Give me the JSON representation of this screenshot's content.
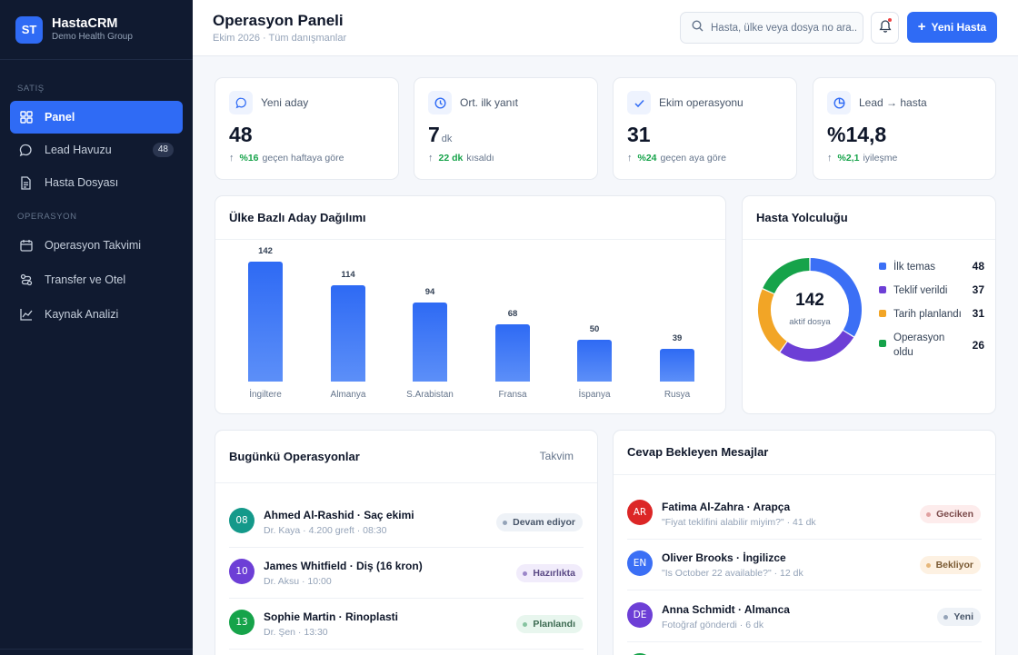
{
  "brand": {
    "logo": "ST",
    "name": "HastaCRM",
    "sub": "Demo Health Group",
    "accent": "#2f6bf5"
  },
  "sidebar": {
    "sections": [
      "SATIŞ",
      "OPERASYON"
    ],
    "items": [
      {
        "label": "Panel",
        "icon": "grid-icon",
        "active": true
      },
      {
        "label": "Lead Havuzu",
        "icon": "chat-icon",
        "badge": "48"
      },
      {
        "label": "Hasta Dosyası",
        "icon": "document-icon"
      },
      {
        "label": "Operasyon Takvimi",
        "icon": "calendar-icon"
      },
      {
        "label": "Transfer ve Otel",
        "icon": "route-icon"
      },
      {
        "label": "Kaynak Analizi",
        "icon": "line-chart-icon"
      }
    ]
  },
  "header": {
    "title": "Operasyon Paneli",
    "subtitle": "Ekim 2026 · Tüm danışmanlar",
    "search_placeholder": "Hasta, ülke veya dosya no ara...",
    "new_button": "Yeni Hasta"
  },
  "kpis": [
    {
      "label": "Yeni aday",
      "icon": "chat-icon",
      "value": "48",
      "unit": "",
      "delta": "%16",
      "note": "geçen haftaya göre"
    },
    {
      "label": "Ort. ilk yanıt",
      "icon": "clock-icon",
      "value": "7",
      "unit": "dk",
      "delta": "22 dk",
      "note": "kısaldı"
    },
    {
      "label": "Ekim operasyonu",
      "icon": "check-icon",
      "value": "31",
      "unit": "",
      "delta": "%24",
      "note": "geçen aya göre"
    },
    {
      "label": "Lead → hasta",
      "icon": "pie-icon",
      "value": "%14,8",
      "unit": "",
      "delta": "%2,1",
      "note": "iyileşme"
    }
  ],
  "chart_data": {
    "type": "bar",
    "title": "Ülke Bazlı Aday Dağılımı",
    "categories": [
      "İngiltere",
      "Almanya",
      "S.Arabistan",
      "Fransa",
      "İspanya",
      "Rusya"
    ],
    "values": [
      142,
      114,
      94,
      68,
      50,
      39
    ],
    "color": "#2f6bf5"
  },
  "journey": {
    "title": "Hasta Yolculuğu",
    "total": "142",
    "total_label": "aktif dosya",
    "segments": [
      {
        "label": "İlk temas",
        "value": 48,
        "color": "#3b6ff5"
      },
      {
        "label": "Teklif verildi",
        "value": 37,
        "color": "#6d3fd6"
      },
      {
        "label": "Tarih planlandı",
        "value": 31,
        "color": "#f2a526"
      },
      {
        "label": "Operasyon oldu",
        "value": 26,
        "color": "#16a34a"
      }
    ]
  },
  "operations": {
    "title": "Bugünkü Operasyonlar",
    "link": "Takvim",
    "rows": [
      {
        "day": "08",
        "color": "#14998a",
        "title": "Ahmed Al-Rashid · Saç ekimi",
        "sub": "Dr. Kaya · 4.200 greft · 08:30",
        "status": "Devam ediyor",
        "status_bg": "#eef2f7",
        "status_fg": "#475569",
        "status_dot": "#94a3b8"
      },
      {
        "day": "10",
        "color": "#6d3fd6",
        "title": "James Whitfield · Diş (16 kron)",
        "sub": "Dr. Aksu · 10:00",
        "status": "Hazırlıkta",
        "status_bg": "#f1ecfb",
        "status_fg": "#5b4a86",
        "status_dot": "#9b86c9"
      },
      {
        "day": "13",
        "color": "#16a34a",
        "title": "Sophie Martin · Rinoplasti",
        "sub": "Dr. Şen · 13:30",
        "status": "Planlandı",
        "status_bg": "#e8f6ee",
        "status_fg": "#3d6b52",
        "status_dot": "#86c3a0"
      }
    ]
  },
  "messages": {
    "title": "Cevap Bekleyen Mesajlar",
    "rows": [
      {
        "initials": "AR",
        "color": "#dc2626",
        "title": "Fatima Al-Zahra · Arapça",
        "sub": "\"Fiyat teklifini alabilir miyim?\" · 41 dk",
        "status": "Geciken",
        "status_bg": "#fdecec",
        "status_fg": "#7b4a4a",
        "status_dot": "#e0a0a0"
      },
      {
        "initials": "EN",
        "color": "#3b6ff5",
        "title": "Oliver Brooks · İngilizce",
        "sub": "\"Is October 22 available?\" · 12 dk",
        "status": "Bekliyor",
        "status_bg": "#fdf1e2",
        "status_fg": "#7a5a33",
        "status_dot": "#e6b77a"
      },
      {
        "initials": "DE",
        "color": "#6d3fd6",
        "title": "Anna Schmidt · Almanca",
        "sub": "Fotoğraf gönderdi · 6 dk",
        "status": "Yeni",
        "status_bg": "#eef2f7",
        "status_fg": "#475569",
        "status_dot": "#94a3b8"
      }
    ]
  }
}
